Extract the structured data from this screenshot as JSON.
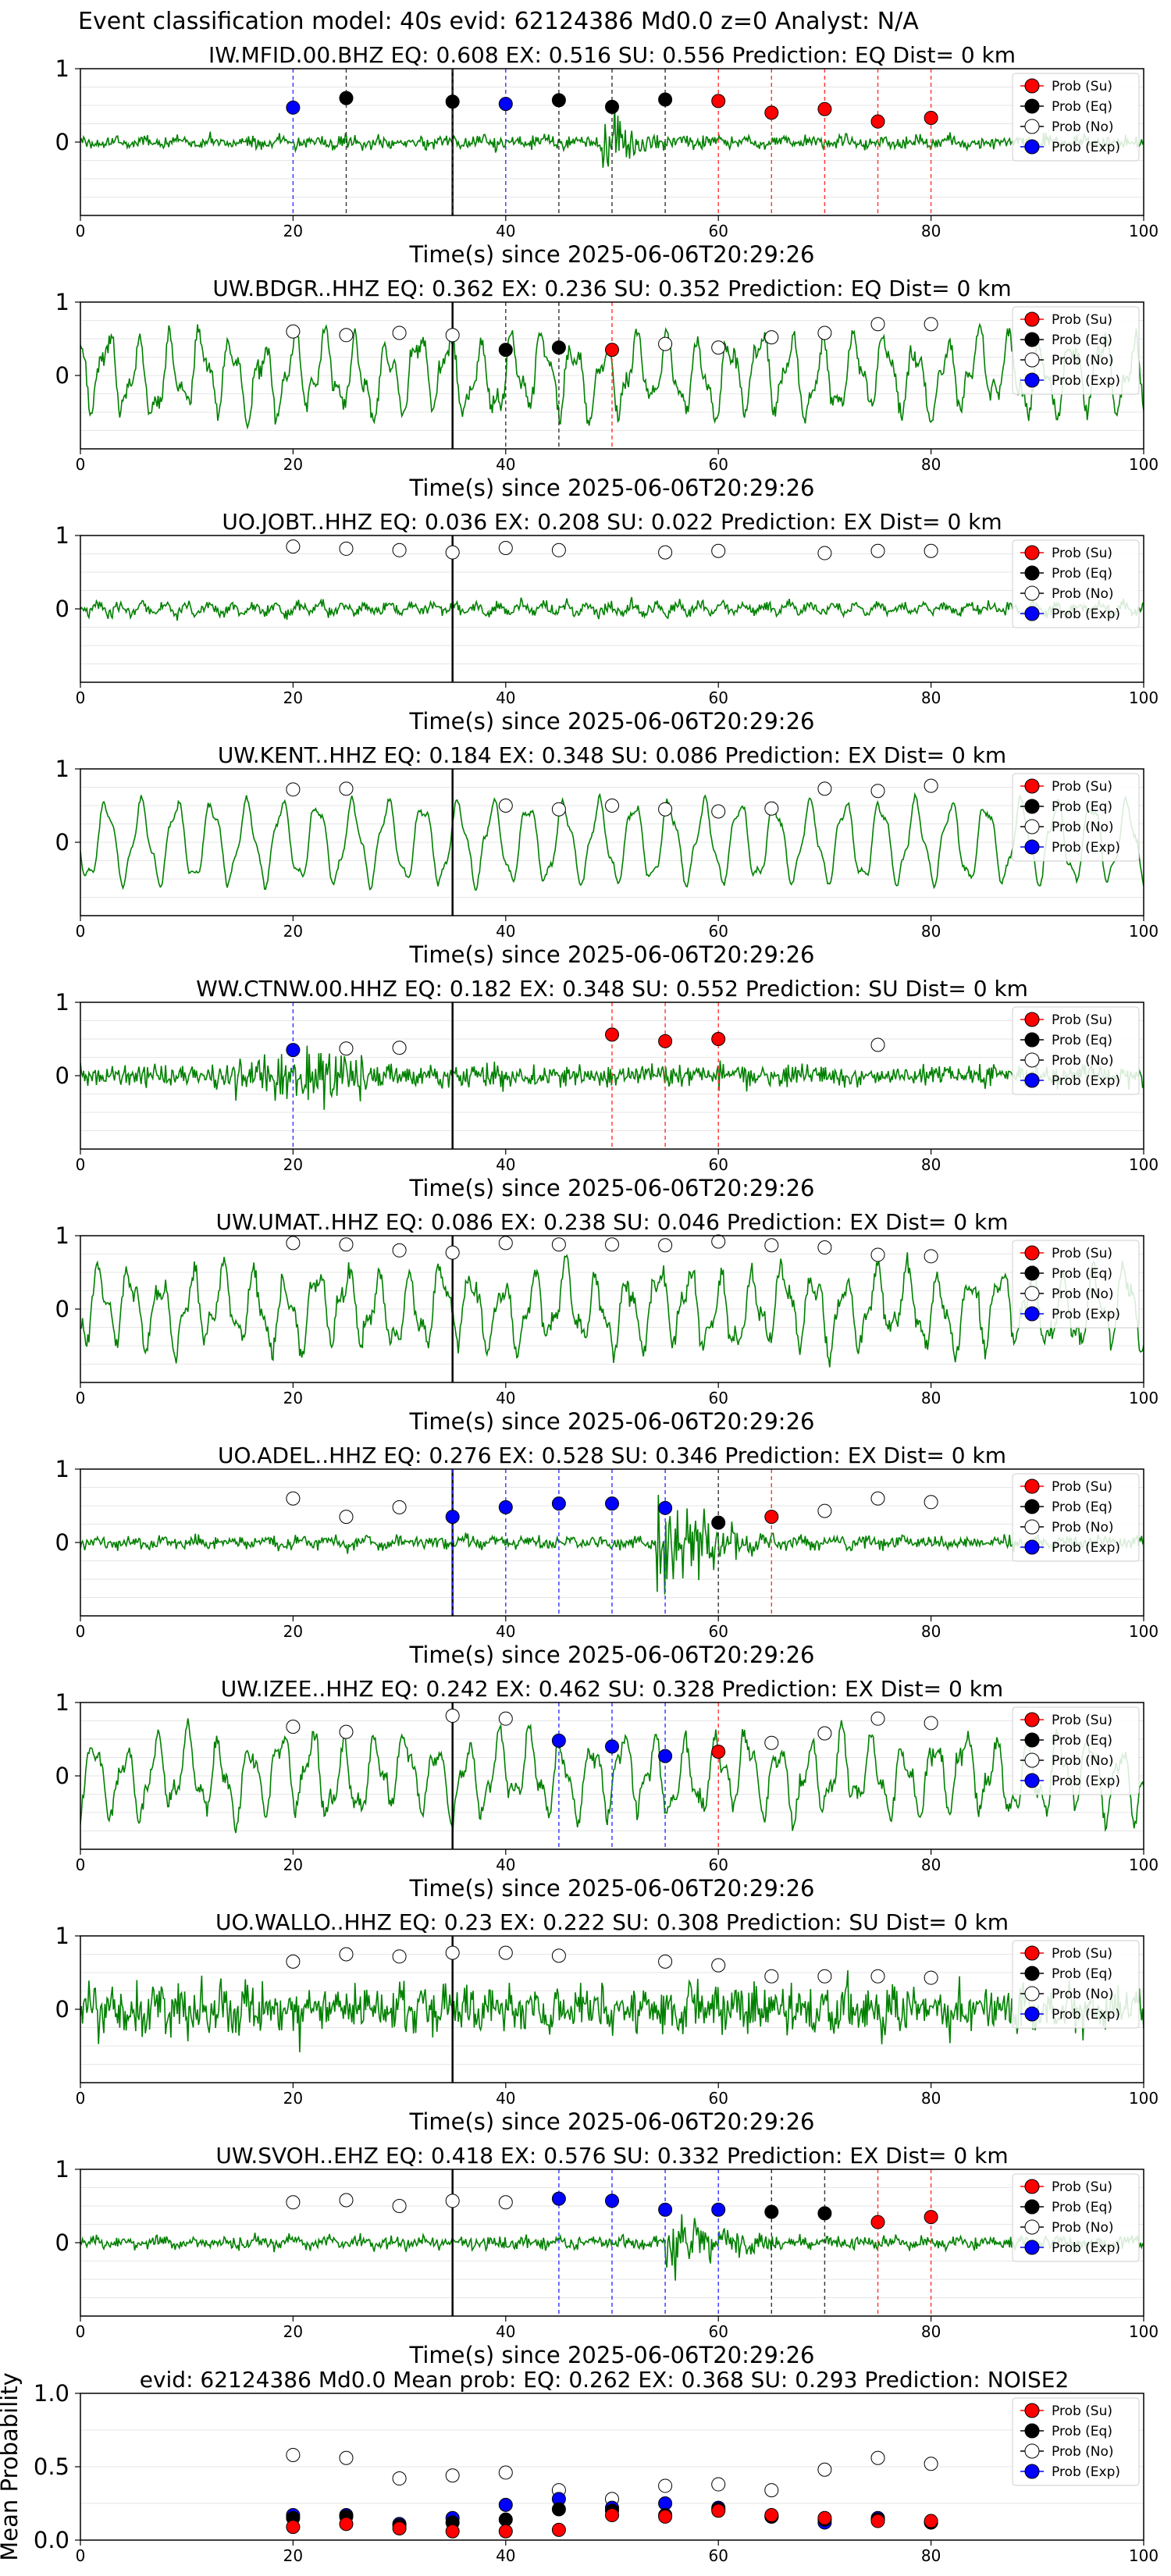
{
  "figure": {
    "title": "Event classification model: 40s evid: 62124386 Md0.0 z=0 Analyst: N/A",
    "colors": {
      "waveform": "#008000",
      "su": "#ff0000",
      "eq": "#000000",
      "no": "#ffffff",
      "exp": "#0000ff",
      "pick_line": "#000000"
    },
    "legend_labels": {
      "su": "Prob (Su)",
      "eq": "Prob (Eq)",
      "no": "Prob (No)",
      "exp": "Prob (Exp)"
    },
    "legend_position": "top-right"
  },
  "chart_data": [
    {
      "type": "line",
      "title": "IW.MFID.00.BHZ   EQ: 0.608  EX: 0.516  SU: 0.556   Prediction: EQ    Dist= 0 km",
      "xlabel": "Time(s) since 2025-06-06T20:29:26",
      "ylabel": "",
      "xlim": [
        0,
        100
      ],
      "ylim": [
        -1,
        1
      ],
      "xticks": [
        0,
        20,
        40,
        60,
        80,
        100
      ],
      "yticks": [
        0,
        1
      ],
      "pick_time": 35,
      "waveform_character": "noisy, burst near 50-60 s",
      "points": [
        {
          "x": 20,
          "cls": "exp",
          "y": 0.47
        },
        {
          "x": 25,
          "cls": "eq",
          "y": 0.6
        },
        {
          "x": 35,
          "cls": "eq",
          "y": 0.55
        },
        {
          "x": 40,
          "cls": "exp",
          "y": 0.52
        },
        {
          "x": 45,
          "cls": "eq",
          "y": 0.57
        },
        {
          "x": 50,
          "cls": "eq",
          "y": 0.48
        },
        {
          "x": 55,
          "cls": "eq",
          "y": 0.58
        },
        {
          "x": 60,
          "cls": "su",
          "y": 0.56
        },
        {
          "x": 65,
          "cls": "su",
          "y": 0.4
        },
        {
          "x": 70,
          "cls": "su",
          "y": 0.45
        },
        {
          "x": 75,
          "cls": "su",
          "y": 0.28
        },
        {
          "x": 80,
          "cls": "su",
          "y": 0.33
        }
      ]
    },
    {
      "type": "line",
      "title": "UW.BDGR..HHZ   EQ: 0.362  EX: 0.236  SU: 0.352   Prediction: EQ    Dist= 0 km",
      "xlabel": "Time(s) since 2025-06-06T20:29:26",
      "ylabel": "",
      "xlim": [
        0,
        100
      ],
      "ylim": [
        -1,
        1
      ],
      "xticks": [
        0,
        20,
        40,
        60,
        80,
        100
      ],
      "yticks": [
        0,
        1
      ],
      "pick_time": 35,
      "waveform_character": "large low-frequency oscillations",
      "points": [
        {
          "x": 20,
          "cls": "no",
          "y": 0.6
        },
        {
          "x": 25,
          "cls": "no",
          "y": 0.55
        },
        {
          "x": 30,
          "cls": "no",
          "y": 0.58
        },
        {
          "x": 35,
          "cls": "no",
          "y": 0.55
        },
        {
          "x": 40,
          "cls": "eq",
          "y": 0.35
        },
        {
          "x": 45,
          "cls": "eq",
          "y": 0.38
        },
        {
          "x": 50,
          "cls": "su",
          "y": 0.35
        },
        {
          "x": 55,
          "cls": "no",
          "y": 0.43
        },
        {
          "x": 60,
          "cls": "no",
          "y": 0.38
        },
        {
          "x": 65,
          "cls": "no",
          "y": 0.52
        },
        {
          "x": 70,
          "cls": "no",
          "y": 0.58
        },
        {
          "x": 75,
          "cls": "no",
          "y": 0.7
        },
        {
          "x": 80,
          "cls": "no",
          "y": 0.7
        }
      ]
    },
    {
      "type": "line",
      "title": "UO.JOBT..HHZ   EQ: 0.036  EX: 0.208  SU: 0.022   Prediction: EX    Dist= 0 km",
      "xlabel": "Time(s) since 2025-06-06T20:29:26",
      "ylabel": "",
      "xlim": [
        0,
        100
      ],
      "ylim": [
        -1,
        1
      ],
      "xticks": [
        0,
        20,
        40,
        60,
        80,
        100
      ],
      "yticks": [
        0,
        1
      ],
      "pick_time": 35,
      "waveform_character": "low-amplitude noise",
      "points": [
        {
          "x": 20,
          "cls": "no",
          "y": 0.85
        },
        {
          "x": 25,
          "cls": "no",
          "y": 0.82
        },
        {
          "x": 30,
          "cls": "no",
          "y": 0.8
        },
        {
          "x": 35,
          "cls": "no",
          "y": 0.77
        },
        {
          "x": 40,
          "cls": "no",
          "y": 0.83
        },
        {
          "x": 45,
          "cls": "no",
          "y": 0.8
        },
        {
          "x": 55,
          "cls": "no",
          "y": 0.77
        },
        {
          "x": 60,
          "cls": "no",
          "y": 0.79
        },
        {
          "x": 70,
          "cls": "no",
          "y": 0.76
        },
        {
          "x": 75,
          "cls": "no",
          "y": 0.79
        },
        {
          "x": 80,
          "cls": "no",
          "y": 0.79
        }
      ]
    },
    {
      "type": "line",
      "title": "UW.KENT..HHZ   EQ: 0.184  EX: 0.348  SU: 0.086   Prediction: EX    Dist= 0 km",
      "xlabel": "Time(s) since 2025-06-06T20:29:26",
      "ylabel": "",
      "xlim": [
        0,
        100
      ],
      "ylim": [
        -1,
        1
      ],
      "xticks": [
        0,
        20,
        40,
        60,
        80,
        100
      ],
      "yticks": [
        0,
        1
      ],
      "pick_time": 35,
      "waveform_character": "smooth regular oscillations",
      "points": [
        {
          "x": 20,
          "cls": "no",
          "y": 0.72
        },
        {
          "x": 25,
          "cls": "no",
          "y": 0.73
        },
        {
          "x": 40,
          "cls": "no",
          "y": 0.5
        },
        {
          "x": 45,
          "cls": "no",
          "y": 0.45
        },
        {
          "x": 50,
          "cls": "no",
          "y": 0.5
        },
        {
          "x": 55,
          "cls": "no",
          "y": 0.45
        },
        {
          "x": 60,
          "cls": "no",
          "y": 0.42
        },
        {
          "x": 65,
          "cls": "no",
          "y": 0.46
        },
        {
          "x": 70,
          "cls": "no",
          "y": 0.73
        },
        {
          "x": 75,
          "cls": "no",
          "y": 0.7
        },
        {
          "x": 80,
          "cls": "no",
          "y": 0.77
        }
      ]
    },
    {
      "type": "line",
      "title": "WW.CTNW.00.HHZ   EQ: 0.182  EX: 0.348  SU: 0.552   Prediction: SU    Dist= 0 km",
      "xlabel": "Time(s) since 2025-06-06T20:29:26",
      "ylabel": "",
      "xlim": [
        0,
        100
      ],
      "ylim": [
        -1,
        1
      ],
      "xticks": [
        0,
        20,
        40,
        60,
        80,
        100
      ],
      "yticks": [
        0,
        1
      ],
      "pick_time": 35,
      "waveform_character": "dense high-frequency noise, burst near 15-25 s",
      "points": [
        {
          "x": 20,
          "cls": "exp",
          "y": 0.35
        },
        {
          "x": 25,
          "cls": "no",
          "y": 0.37
        },
        {
          "x": 30,
          "cls": "no",
          "y": 0.38
        },
        {
          "x": 50,
          "cls": "su",
          "y": 0.56
        },
        {
          "x": 55,
          "cls": "su",
          "y": 0.47
        },
        {
          "x": 60,
          "cls": "su",
          "y": 0.5
        },
        {
          "x": 75,
          "cls": "no",
          "y": 0.42
        }
      ]
    },
    {
      "type": "line",
      "title": "UW.UMAT..HHZ   EQ: 0.086  EX: 0.238  SU: 0.046   Prediction: EX    Dist= 0 km",
      "xlabel": "Time(s) since 2025-06-06T20:29:26",
      "ylabel": "",
      "xlim": [
        0,
        100
      ],
      "ylim": [
        -1,
        1
      ],
      "xticks": [
        0,
        20,
        40,
        60,
        80,
        100
      ],
      "yticks": [
        0,
        1
      ],
      "pick_time": 35,
      "waveform_character": "large low-frequency oscillations",
      "points": [
        {
          "x": 20,
          "cls": "no",
          "y": 0.9
        },
        {
          "x": 25,
          "cls": "no",
          "y": 0.88
        },
        {
          "x": 30,
          "cls": "no",
          "y": 0.8
        },
        {
          "x": 35,
          "cls": "no",
          "y": 0.77
        },
        {
          "x": 40,
          "cls": "no",
          "y": 0.9
        },
        {
          "x": 45,
          "cls": "no",
          "y": 0.88
        },
        {
          "x": 50,
          "cls": "no",
          "y": 0.88
        },
        {
          "x": 55,
          "cls": "no",
          "y": 0.87
        },
        {
          "x": 60,
          "cls": "no",
          "y": 0.92
        },
        {
          "x": 65,
          "cls": "no",
          "y": 0.87
        },
        {
          "x": 70,
          "cls": "no",
          "y": 0.84
        },
        {
          "x": 75,
          "cls": "no",
          "y": 0.74
        },
        {
          "x": 80,
          "cls": "no",
          "y": 0.72
        }
      ]
    },
    {
      "type": "line",
      "title": "UO.ADEL..HHZ   EQ: 0.276  EX: 0.528  SU: 0.346   Prediction: EX    Dist= 0 km",
      "xlabel": "Time(s) since 2025-06-06T20:29:26",
      "ylabel": "",
      "xlim": [
        0,
        100
      ],
      "ylim": [
        -1,
        1
      ],
      "xticks": [
        0,
        20,
        40,
        60,
        80,
        100
      ],
      "yticks": [
        0,
        1
      ],
      "pick_time": 35,
      "waveform_character": "noisy, strong burst near 55-65 s",
      "points": [
        {
          "x": 20,
          "cls": "no",
          "y": 0.6
        },
        {
          "x": 25,
          "cls": "no",
          "y": 0.35
        },
        {
          "x": 30,
          "cls": "no",
          "y": 0.48
        },
        {
          "x": 35,
          "cls": "exp",
          "y": 0.35
        },
        {
          "x": 40,
          "cls": "exp",
          "y": 0.48
        },
        {
          "x": 45,
          "cls": "exp",
          "y": 0.53
        },
        {
          "x": 50,
          "cls": "exp",
          "y": 0.53
        },
        {
          "x": 55,
          "cls": "exp",
          "y": 0.47
        },
        {
          "x": 60,
          "cls": "eq",
          "y": 0.27
        },
        {
          "x": 65,
          "cls": "su",
          "y": 0.35
        },
        {
          "x": 70,
          "cls": "no",
          "y": 0.43
        },
        {
          "x": 75,
          "cls": "no",
          "y": 0.6
        },
        {
          "x": 80,
          "cls": "no",
          "y": 0.55
        }
      ]
    },
    {
      "type": "line",
      "title": "UW.IZEE..HHZ   EQ: 0.242  EX: 0.462  SU: 0.328   Prediction: EX    Dist= 0 km",
      "xlabel": "Time(s) since 2025-06-06T20:29:26",
      "ylabel": "",
      "xlim": [
        0,
        100
      ],
      "ylim": [
        -1,
        1
      ],
      "xticks": [
        0,
        20,
        40,
        60,
        80,
        100
      ],
      "yticks": [
        0,
        1
      ],
      "pick_time": 35,
      "waveform_character": "large low-frequency oscillations",
      "points": [
        {
          "x": 20,
          "cls": "no",
          "y": 0.67
        },
        {
          "x": 25,
          "cls": "no",
          "y": 0.6
        },
        {
          "x": 35,
          "cls": "no",
          "y": 0.82
        },
        {
          "x": 40,
          "cls": "no",
          "y": 0.78
        },
        {
          "x": 45,
          "cls": "exp",
          "y": 0.48
        },
        {
          "x": 50,
          "cls": "exp",
          "y": 0.4
        },
        {
          "x": 55,
          "cls": "exp",
          "y": 0.27
        },
        {
          "x": 60,
          "cls": "su",
          "y": 0.33
        },
        {
          "x": 65,
          "cls": "no",
          "y": 0.45
        },
        {
          "x": 70,
          "cls": "no",
          "y": 0.58
        },
        {
          "x": 75,
          "cls": "no",
          "y": 0.78
        },
        {
          "x": 80,
          "cls": "no",
          "y": 0.72
        }
      ]
    },
    {
      "type": "line",
      "title": "UO.WALLO..HHZ   EQ: 0.23  EX: 0.222  SU: 0.308   Prediction: SU    Dist= 0 km",
      "xlabel": "Time(s) since 2025-06-06T20:29:26",
      "ylabel": "",
      "xlim": [
        0,
        100
      ],
      "ylim": [
        -1,
        1
      ],
      "xticks": [
        0,
        20,
        40,
        60,
        80,
        100
      ],
      "yticks": [
        0,
        1
      ],
      "pick_time": 35,
      "waveform_character": "dense high-amplitude noise",
      "points": [
        {
          "x": 20,
          "cls": "no",
          "y": 0.65
        },
        {
          "x": 25,
          "cls": "no",
          "y": 0.75
        },
        {
          "x": 30,
          "cls": "no",
          "y": 0.72
        },
        {
          "x": 35,
          "cls": "no",
          "y": 0.77
        },
        {
          "x": 40,
          "cls": "no",
          "y": 0.77
        },
        {
          "x": 45,
          "cls": "no",
          "y": 0.73
        },
        {
          "x": 55,
          "cls": "no",
          "y": 0.65
        },
        {
          "x": 60,
          "cls": "no",
          "y": 0.6
        },
        {
          "x": 65,
          "cls": "no",
          "y": 0.45
        },
        {
          "x": 70,
          "cls": "no",
          "y": 0.45
        },
        {
          "x": 75,
          "cls": "no",
          "y": 0.45
        },
        {
          "x": 80,
          "cls": "no",
          "y": 0.43
        }
      ]
    },
    {
      "type": "line",
      "title": "UW.SVOH..EHZ   EQ: 0.418  EX: 0.576  SU: 0.332   Prediction: EX    Dist= 0 km",
      "xlabel": "Time(s) since 2025-06-06T20:29:26",
      "ylabel": "",
      "xlim": [
        0,
        100
      ],
      "ylim": [
        -1,
        1
      ],
      "xticks": [
        0,
        20,
        40,
        60,
        80,
        100
      ],
      "yticks": [
        0,
        1
      ],
      "pick_time": 35,
      "waveform_character": "noisy, burst near 55-70 s",
      "points": [
        {
          "x": 20,
          "cls": "no",
          "y": 0.55
        },
        {
          "x": 25,
          "cls": "no",
          "y": 0.58
        },
        {
          "x": 30,
          "cls": "no",
          "y": 0.5
        },
        {
          "x": 35,
          "cls": "no",
          "y": 0.57
        },
        {
          "x": 40,
          "cls": "no",
          "y": 0.55
        },
        {
          "x": 45,
          "cls": "exp",
          "y": 0.6
        },
        {
          "x": 50,
          "cls": "exp",
          "y": 0.57
        },
        {
          "x": 55,
          "cls": "exp",
          "y": 0.45
        },
        {
          "x": 60,
          "cls": "exp",
          "y": 0.45
        },
        {
          "x": 65,
          "cls": "eq",
          "y": 0.42
        },
        {
          "x": 70,
          "cls": "eq",
          "y": 0.4
        },
        {
          "x": 75,
          "cls": "su",
          "y": 0.28
        },
        {
          "x": 80,
          "cls": "su",
          "y": 0.35
        }
      ]
    },
    {
      "type": "scatter",
      "title": "evid: 62124386  Md0.0   Mean prob:   EQ: 0.262  EX: 0.368  SU: 0.293   Prediction: NOISE2",
      "xlabel": "",
      "ylabel": "Mean Probability",
      "xlim": [
        0,
        100
      ],
      "ylim": [
        0,
        1
      ],
      "xticks": [
        0,
        20,
        40,
        60,
        80,
        100
      ],
      "yticks": [
        0.0,
        0.5,
        1.0
      ],
      "ytick_labels": [
        "0.0",
        "0.5",
        "1.0"
      ],
      "x": [
        20,
        25,
        30,
        35,
        40,
        45,
        50,
        55,
        60,
        65,
        70,
        75,
        80
      ],
      "series": [
        {
          "cls": "no",
          "values": [
            0.58,
            0.56,
            0.42,
            0.44,
            0.46,
            0.34,
            0.28,
            0.37,
            0.38,
            0.34,
            0.48,
            0.56,
            0.52
          ]
        },
        {
          "cls": "exp",
          "values": [
            0.17,
            0.17,
            0.11,
            0.15,
            0.24,
            0.28,
            0.22,
            0.25,
            0.22,
            0.16,
            0.12,
            0.15,
            0.12
          ]
        },
        {
          "cls": "eq",
          "values": [
            0.15,
            0.16,
            0.1,
            0.12,
            0.14,
            0.21,
            0.2,
            0.17,
            0.21,
            0.16,
            0.14,
            0.14,
            0.12
          ]
        },
        {
          "cls": "su",
          "values": [
            0.09,
            0.11,
            0.08,
            0.06,
            0.06,
            0.07,
            0.17,
            0.16,
            0.2,
            0.17,
            0.15,
            0.13,
            0.13
          ]
        }
      ]
    }
  ]
}
